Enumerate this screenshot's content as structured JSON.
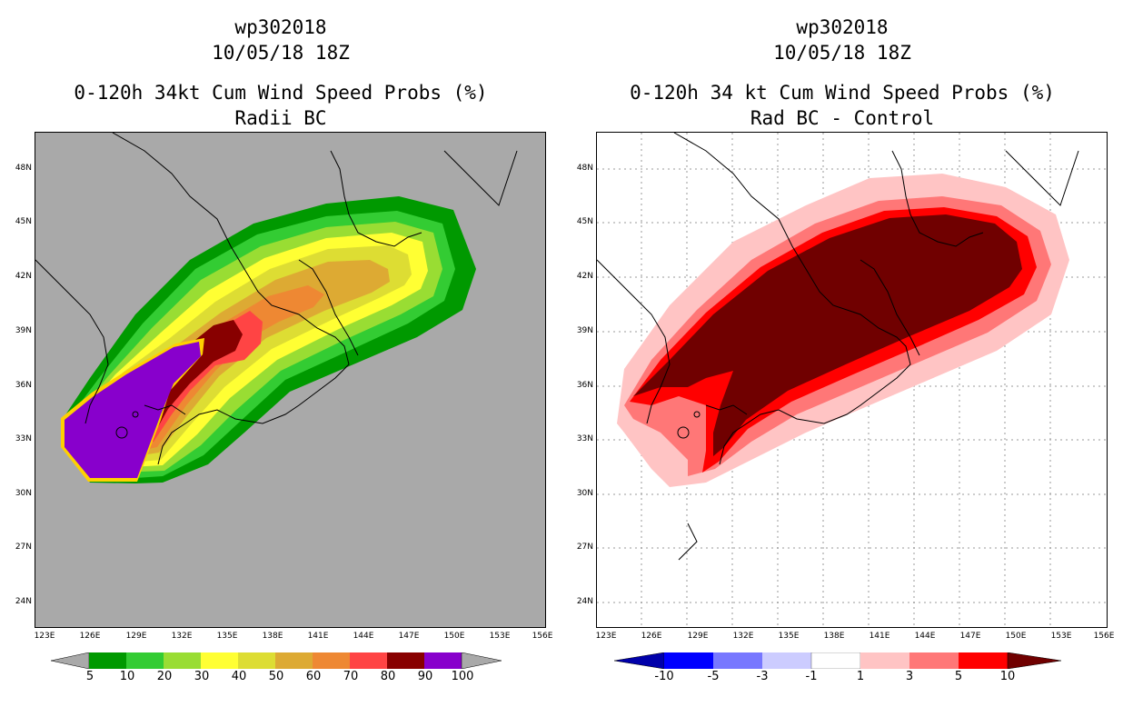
{
  "left": {
    "storm_id": "wp302018",
    "datetime": "10/05/18 18Z",
    "title": "0-120h 34kt Cum Wind Speed Probs (%)",
    "subtitle": "Radii BC",
    "legend_labels": [
      "5",
      "10",
      "20",
      "30",
      "40",
      "50",
      "60",
      "70",
      "80",
      "90",
      "100"
    ],
    "legend_colors": [
      "#009900",
      "#33cc33",
      "#99dd33",
      "#ffff33",
      "#dddd33",
      "#ddaa33",
      "#ee8833",
      "#ff4444",
      "#880000",
      "#8800cc"
    ]
  },
  "right": {
    "storm_id": "wp302018",
    "datetime": "10/05/18 18Z",
    "title": "0-120h 34 kt Cum Wind Speed Probs (%)",
    "subtitle": "Rad BC - Control",
    "legend_labels": [
      "-10",
      "-5",
      "-3",
      "-1",
      "1",
      "3",
      "5",
      "10"
    ],
    "legend_colors": [
      "#0000aa",
      "#0000ff",
      "#7777ff",
      "#ccccff",
      "#ffffff",
      "#ffc4c4",
      "#ff7777",
      "#ff0000",
      "#700000"
    ]
  },
  "axes": {
    "lat_labels": [
      "48N",
      "45N",
      "42N",
      "39N",
      "36N",
      "33N",
      "30N",
      "27N",
      "24N"
    ],
    "lon_labels": [
      "123E",
      "126E",
      "129E",
      "132E",
      "135E",
      "138E",
      "141E",
      "144E",
      "147E",
      "150E",
      "153E",
      "156E"
    ]
  }
}
